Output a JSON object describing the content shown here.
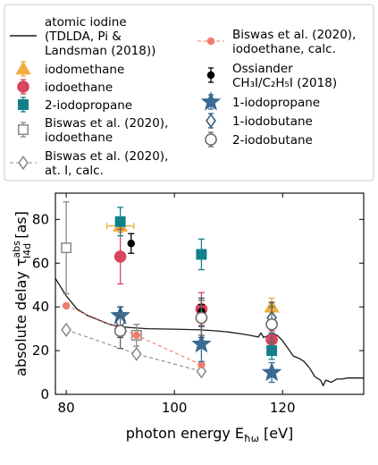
{
  "chart_data": {
    "type": "scatter",
    "xlabel": "photon energy E",
    "xlabel_sub": "ħω",
    "xlabel_unit": " [eV]",
    "ylabel": "absolute delay τ",
    "ylabel_sup": "abs",
    "ylabel_sub": "I4d",
    "ylabel_unit": " [as]",
    "xlim": [
      78,
      135
    ],
    "ylim": [
      0,
      92
    ],
    "x_ticks": [
      80,
      100,
      120
    ],
    "y_ticks": [
      0,
      20,
      40,
      60,
      80
    ],
    "legend_position": "top (above axes, two columns)",
    "series": [
      {
        "name": "atomic iodine (TDLDA, Pi & Landsman (2018))",
        "legend_lines": [
          "atomic iodine",
          "(TDLDA, Pi &",
          "Landsman (2018))"
        ],
        "style": "line",
        "color": "#1a1a1a",
        "points": [
          [
            78,
            53
          ],
          [
            79,
            49
          ],
          [
            80,
            45
          ],
          [
            82,
            39
          ],
          [
            84,
            36
          ],
          [
            86,
            34
          ],
          [
            88,
            32
          ],
          [
            90,
            31
          ],
          [
            92,
            30.5
          ],
          [
            95,
            30
          ],
          [
            100,
            29.8
          ],
          [
            105,
            29.5
          ],
          [
            108,
            29
          ],
          [
            110,
            28.5
          ],
          [
            112,
            27.8
          ],
          [
            114,
            27
          ],
          [
            115.5,
            26.2
          ],
          [
            116,
            28
          ],
          [
            116.5,
            26
          ],
          [
            117,
            26.5
          ],
          [
            118,
            28
          ],
          [
            119,
            27
          ],
          [
            120,
            24.5
          ],
          [
            121,
            21
          ],
          [
            122,
            17.5
          ],
          [
            123,
            16.5
          ],
          [
            124,
            15
          ],
          [
            125,
            12
          ],
          [
            126,
            8
          ],
          [
            127,
            6.5
          ],
          [
            127.5,
            4
          ],
          [
            128,
            6.5
          ],
          [
            129,
            5.5
          ],
          [
            130,
            7
          ],
          [
            131,
            7
          ],
          [
            132,
            7.5
          ],
          [
            135,
            7.5
          ]
        ]
      },
      {
        "name": "iodomethane",
        "legend_lines": [
          "iodomethane"
        ],
        "style": "marker",
        "marker": "triangle",
        "color": "#f0ad3e",
        "filled": true,
        "points": [
          [
            90,
            77,
            3,
            2.5
          ],
          [
            118,
            40,
            4,
            0
          ]
        ]
      },
      {
        "name": "iodoethane",
        "legend_lines": [
          "iodoethane"
        ],
        "style": "marker",
        "marker": "circle",
        "color": "#d8455b",
        "filled": true,
        "points": [
          [
            90,
            63,
            12.5,
            0
          ],
          [
            105,
            39,
            7.5,
            0
          ],
          [
            118,
            25,
            4,
            0
          ]
        ]
      },
      {
        "name": "2-iodopropane",
        "legend_lines": [
          "2-iodopropane"
        ],
        "style": "marker",
        "marker": "square",
        "color": "#12808a",
        "filled": true,
        "points": [
          [
            90,
            79,
            6.5,
            0
          ],
          [
            105,
            64,
            7,
            0
          ],
          [
            118,
            20,
            4,
            0
          ]
        ]
      },
      {
        "name": "Biswas et al. (2020), iodoethane",
        "legend_lines": [
          "Biswas et al. (2020),",
          "iodoethane"
        ],
        "style": "marker",
        "marker": "square",
        "color": "#888888",
        "filled": false,
        "points": [
          [
            80,
            67,
            21,
            0
          ],
          [
            93,
            27,
            5,
            0
          ]
        ]
      },
      {
        "name": "Biswas et al. (2020), at. I, calc.",
        "legend_lines": [
          "Biswas et al. (2020),",
          "at. I, calc."
        ],
        "style": "dashed-marker",
        "marker": "diamond",
        "color": "#888888",
        "filled": false,
        "points": [
          [
            80,
            29.5
          ],
          [
            93,
            18.5
          ],
          [
            105,
            10.5
          ]
        ]
      },
      {
        "name": "Biswas et al. (2020), iodoethane, calc.",
        "legend_lines": [
          "Biswas et al. (2020),",
          "iodoethane, calc."
        ],
        "style": "dashed-marker",
        "marker": "dot",
        "color": "#f07e6e",
        "filled": true,
        "points": [
          [
            80,
            40.5
          ],
          [
            93,
            27
          ],
          [
            105,
            13.5
          ]
        ]
      },
      {
        "name": "Ossiander CH3I/C2H5I (2018)",
        "legend_lines": [
          "Ossiander",
          "CH₃I/C₂H₅I (2018)"
        ],
        "style": "marker",
        "marker": "dot",
        "color": "#000000",
        "filled": true,
        "points": [
          [
            92,
            69,
            4.5,
            0
          ],
          [
            105,
            38,
            3,
            0
          ]
        ]
      },
      {
        "name": "1-iodopropane",
        "legend_lines": [
          "1-iodopropane"
        ],
        "style": "marker",
        "marker": "star",
        "color": "#3a6a95",
        "filled": true,
        "points": [
          [
            90,
            36,
            4,
            0
          ],
          [
            105,
            23,
            8,
            0
          ],
          [
            118,
            10,
            4.5,
            0
          ]
        ]
      },
      {
        "name": "1-iodobutane",
        "legend_lines": [
          "1-iodobutane"
        ],
        "style": "marker",
        "marker": "diamond",
        "color": "#2f5778",
        "filled": false,
        "points": [
          [
            90,
            33,
            7,
            0
          ],
          [
            105,
            35,
            9,
            0
          ],
          [
            118,
            35,
            7,
            0
          ]
        ]
      },
      {
        "name": "2-iodobutane",
        "legend_lines": [
          "2-iodobutane"
        ],
        "style": "marker",
        "marker": "circle",
        "color": "#666666",
        "filled": false,
        "points": [
          [
            90,
            29,
            8,
            0
          ],
          [
            105,
            35,
            8,
            0
          ],
          [
            118,
            32,
            8,
            0
          ]
        ]
      }
    ]
  }
}
